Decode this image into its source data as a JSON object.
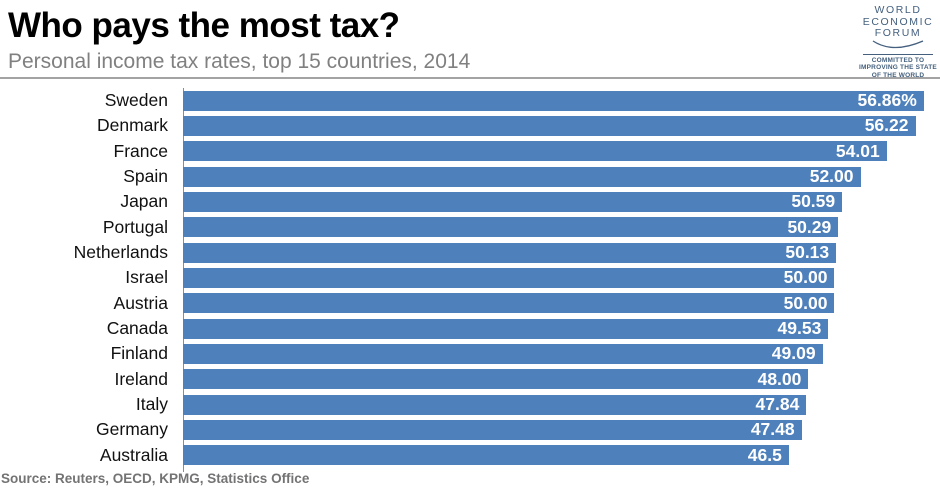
{
  "header": {
    "title": "Who pays the most tax?",
    "subtitle": "Personal income tax rates, top 15 countries, 2014"
  },
  "logo": {
    "lines": [
      "WORLD",
      "ECONOMIC",
      "FORUM"
    ],
    "tagline_lines": [
      "COMMITTED TO",
      "IMPROVING THE STATE",
      "OF THE WORLD"
    ],
    "color": "#44607e"
  },
  "chart_data": {
    "type": "bar",
    "orientation": "horizontal",
    "title": "Who pays the most tax?",
    "subtitle": "Personal income tax rates, top 15 countries, 2014",
    "categories": [
      "Sweden",
      "Denmark",
      "France",
      "Spain",
      "Japan",
      "Portugal",
      "Netherlands",
      "Israel",
      "Austria",
      "Canada",
      "Finland",
      "Ireland",
      "Italy",
      "Germany",
      "Australia"
    ],
    "values": [
      56.86,
      56.22,
      54.01,
      52.0,
      50.59,
      50.29,
      50.13,
      50.0,
      50.0,
      49.53,
      49.09,
      48.0,
      47.84,
      47.48,
      46.5
    ],
    "value_labels": [
      "56.86%",
      "56.22",
      "54.01",
      "52.00",
      "50.59",
      "50.29",
      "50.13",
      "50.00",
      "50.00",
      "49.53",
      "49.09",
      "48.00",
      "47.84",
      "47.48",
      "46.5"
    ],
    "value_unit": "%",
    "xlim": [
      0,
      58.1
    ],
    "grid": false,
    "legend": false,
    "bar_color": "#4E80BC",
    "value_label_color": "#ffffff"
  },
  "source": "Source: Reuters, OECD, KPMG, Statistics Office"
}
